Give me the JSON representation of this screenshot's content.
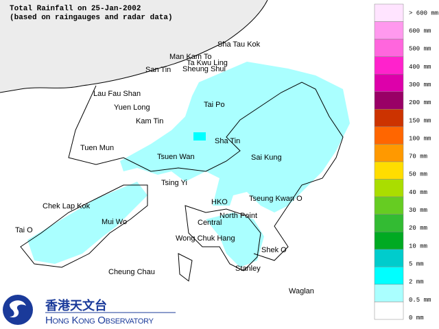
{
  "title": [
    "Total Rainfall on 25-Jan-2002",
    "(based on raingauges and radar data)"
  ],
  "places": [
    "Sha Tau Kok",
    "Man Kam To",
    "Ta Kwu Ling",
    "San Tin",
    "Sheung Shui",
    "Lau Fau Shan",
    "Yuen Long",
    "Tai Po",
    "Kam Tin",
    "Sha Tin",
    "Tuen Mun",
    "Tsuen Wan",
    "Sai Kung",
    "Tsing Yi",
    "Chek Lap Kok",
    "HKO",
    "Tseung Kwan O",
    "Mui Wo",
    "North Point",
    "Central",
    "Tai O",
    "Wong Chuk Hang",
    "Shek O",
    "Cheung Chau",
    "Stanley",
    "Waglan"
  ],
  "legend": [
    {
      "label": "> 600 mm",
      "color": "#ffe4ff"
    },
    {
      "label": "600 mm",
      "color": "#ff99ee"
    },
    {
      "label": "500 mm",
      "color": "#ff66dd"
    },
    {
      "label": "400 mm",
      "color": "#ff22cc"
    },
    {
      "label": "300 mm",
      "color": "#dd00aa"
    },
    {
      "label": "200 mm",
      "color": "#990066"
    },
    {
      "label": "150 mm",
      "color": "#cc3300"
    },
    {
      "label": "100 mm",
      "color": "#ff6600"
    },
    {
      "label": "70 mm",
      "color": "#ff9900"
    },
    {
      "label": "50 mm",
      "color": "#ffdd00"
    },
    {
      "label": "40 mm",
      "color": "#aadd00"
    },
    {
      "label": "30 mm",
      "color": "#66cc22"
    },
    {
      "label": "20 mm",
      "color": "#33bb33"
    },
    {
      "label": "10 mm",
      "color": "#00aa22"
    },
    {
      "label": "5 mm",
      "color": "#00cccc"
    },
    {
      "label": "2 mm",
      "color": "#00ffff"
    },
    {
      "label": "0.5 mm",
      "color": "#aaffff"
    },
    {
      "label": "0 mm",
      "color": "#ffffff"
    }
  ],
  "logo": {
    "chinese": "香港天文台",
    "english": "Hong Kong Observatory"
  }
}
